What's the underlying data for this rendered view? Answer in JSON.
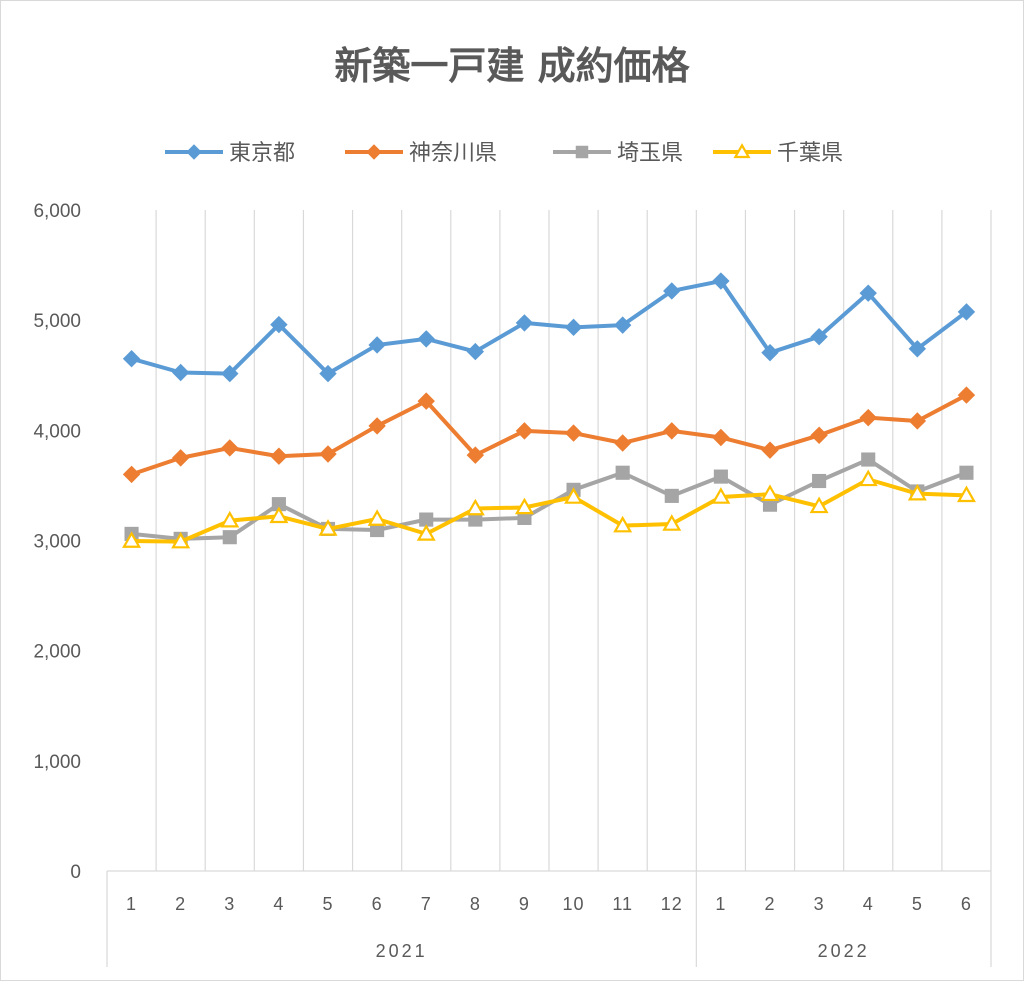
{
  "chart_data": {
    "type": "line",
    "title": "新築一戸建 成約価格",
    "categories": [
      "1",
      "2",
      "3",
      "4",
      "5",
      "6",
      "7",
      "8",
      "9",
      "10",
      "11",
      "12",
      "1",
      "2",
      "3",
      "4",
      "5",
      "6"
    ],
    "category_groups": [
      {
        "label": "2021",
        "count": 12
      },
      {
        "label": "2022",
        "count": 6
      }
    ],
    "ylim": [
      0,
      6000
    ],
    "yticks": [
      0,
      1000,
      2000,
      3000,
      4000,
      5000,
      6000
    ],
    "ytick_labels": [
      "0",
      "1,000",
      "2,000",
      "3,000",
      "4,000",
      "5,000",
      "6,000"
    ],
    "grid": "vertical",
    "legend_position": "top",
    "series": [
      {
        "name": "東京都",
        "color": "#5b9bd5",
        "marker": "diamond",
        "values": [
          4650,
          4525,
          4515,
          4960,
          4515,
          4775,
          4830,
          4715,
          4975,
          4935,
          4955,
          5265,
          5355,
          4705,
          4850,
          5245,
          4740,
          5075
        ]
      },
      {
        "name": "神奈川県",
        "color": "#ed7d31",
        "marker": "diamond",
        "values": [
          3600,
          3750,
          3840,
          3765,
          3785,
          4040,
          4265,
          3775,
          3995,
          3975,
          3885,
          3995,
          3935,
          3820,
          3955,
          4115,
          4085,
          4320
        ]
      },
      {
        "name": "埼玉県",
        "color": "#a5a5a5",
        "marker": "square",
        "values": [
          3060,
          3015,
          3030,
          3330,
          3105,
          3095,
          3190,
          3190,
          3205,
          3460,
          3615,
          3405,
          3580,
          3325,
          3540,
          3735,
          3445,
          3615
        ]
      },
      {
        "name": "千葉県",
        "color": "#ffc000",
        "marker": "triangle",
        "values": [
          2995,
          2990,
          3180,
          3220,
          3105,
          3195,
          3060,
          3290,
          3300,
          3395,
          3135,
          3150,
          3395,
          3420,
          3310,
          3555,
          3425,
          3410
        ]
      }
    ]
  }
}
